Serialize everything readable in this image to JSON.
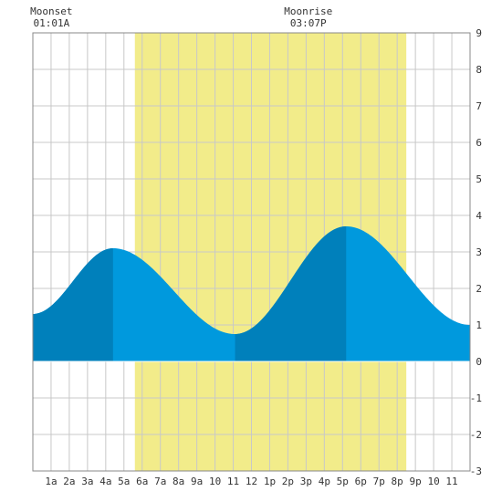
{
  "chart_data": {
    "type": "area",
    "title": "",
    "xlabel": "",
    "ylabel": "",
    "xlim": [
      0,
      24
    ],
    "ylim": [
      -3,
      9
    ],
    "yticks": [
      "9",
      "8",
      "7",
      "6",
      "5",
      "4",
      "3",
      "2",
      "1",
      "0",
      "-1",
      "-2",
      "-3"
    ],
    "xticks": [
      "1a",
      "2a",
      "3a",
      "4a",
      "5a",
      "6a",
      "7a",
      "8a",
      "9a",
      "10",
      "11",
      "12",
      "1p",
      "2p",
      "3p",
      "4p",
      "5p",
      "6p",
      "7p",
      "8p",
      "9p",
      "10",
      "11"
    ],
    "grid": true,
    "daylight": {
      "start_hour": 5.6,
      "end_hour": 20.5
    },
    "annotations": [
      {
        "label": "Moonset",
        "time": "01:01A",
        "hour": 1.02
      },
      {
        "label": "Moonrise",
        "time": "03:07P",
        "hour": 15.12
      }
    ],
    "tide_extrema": [
      {
        "hour": 0.0,
        "height": 1.3
      },
      {
        "hour": 4.4,
        "height": 3.1
      },
      {
        "hour": 11.1,
        "height": 0.75
      },
      {
        "hour": 17.2,
        "height": 3.7
      },
      {
        "hour": 24.0,
        "height": 1.0
      }
    ],
    "dark_bands": [
      {
        "from_hour": 0.0,
        "to_hour": 4.4
      },
      {
        "from_hour": 11.1,
        "to_hour": 17.2
      }
    ],
    "colors": {
      "daylight": "#f2ec8a",
      "tide": "#0099dd",
      "tide_dark": "#0080bb",
      "grid": "#c8c8c8",
      "frame": "#888888"
    }
  }
}
